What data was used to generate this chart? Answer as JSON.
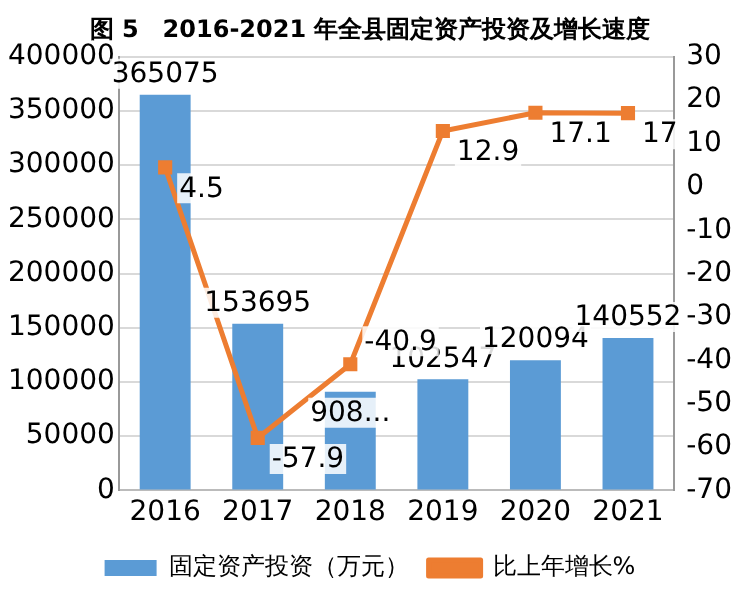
{
  "chart_data": {
    "type": "bar",
    "title": "图 5　2016-2021 年全县固定资产投资及增长速度",
    "categories": [
      "2016",
      "2017",
      "2018",
      "2019",
      "2020",
      "2021"
    ],
    "series": [
      {
        "name": "固定资产投资（万元）",
        "color": "#5b9bd5",
        "values": [
          365075,
          153695,
          91000,
          102547,
          120094,
          140552
        ],
        "value_labels": [
          "365075",
          "153695",
          "908...",
          "102547",
          "120094",
          "140552"
        ]
      },
      {
        "name": "比上年增长%",
        "type": "line",
        "axis": "y2",
        "color": "#ed7d31",
        "values": [
          4.5,
          -57.9,
          -40.9,
          12.9,
          17.1,
          17
        ],
        "value_labels": [
          "4.5",
          "-57.9",
          "-40.9",
          "12.9",
          "17.1",
          "17"
        ],
        "marker": "square"
      }
    ],
    "ylim": [
      0,
      400000
    ],
    "yticks": [
      0,
      50000,
      100000,
      150000,
      200000,
      250000,
      300000,
      350000,
      400000
    ],
    "y2lim": [
      -70,
      30
    ],
    "y2ticks": [
      -70,
      -60,
      -50,
      -40,
      -30,
      -20,
      -10,
      0,
      10,
      20,
      30
    ],
    "grid": "y",
    "legend": "bottom"
  }
}
